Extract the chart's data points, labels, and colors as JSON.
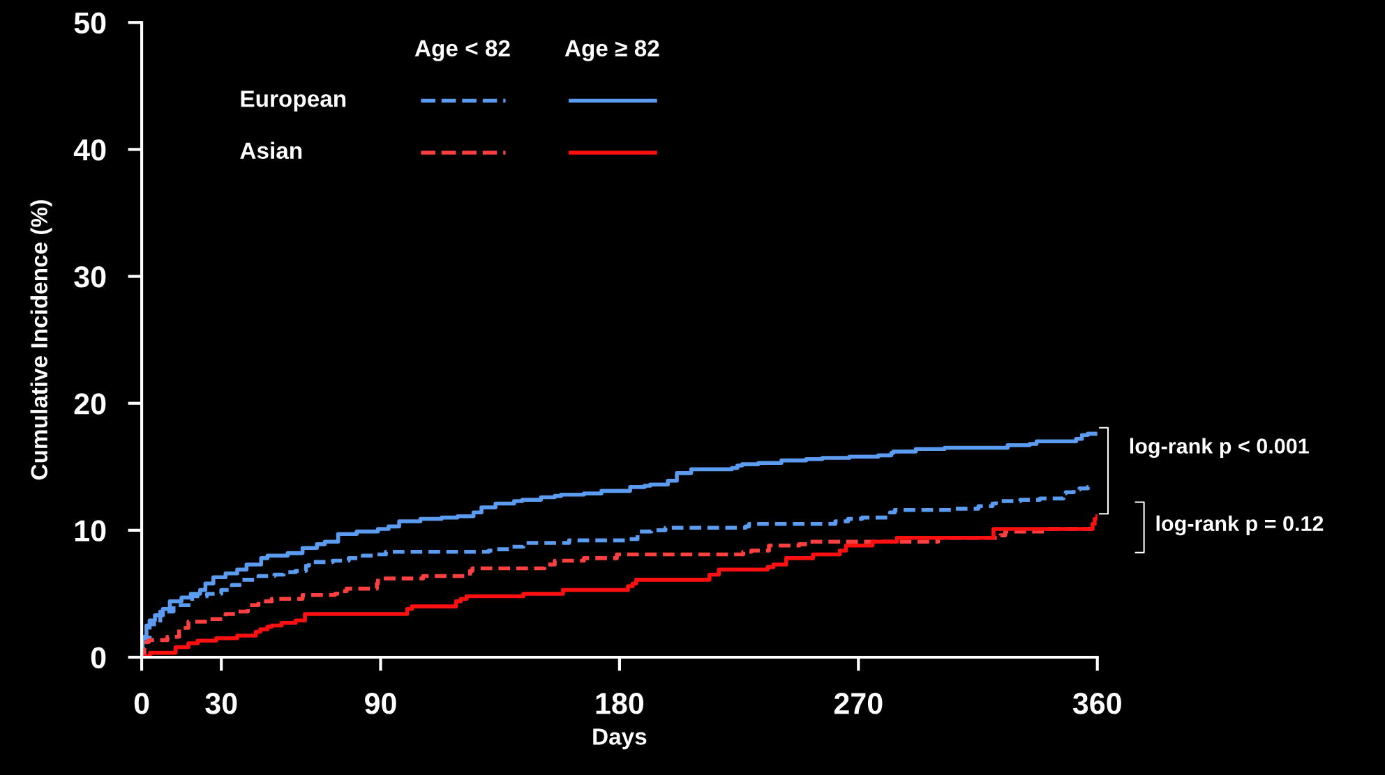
{
  "chart_data": {
    "type": "step",
    "xlabel": "Days",
    "ylabel": "Cumulative Incidence (%)",
    "xlim": [
      0,
      360
    ],
    "ylim": [
      0,
      50
    ],
    "xticks": [
      0,
      30,
      90,
      180,
      270,
      360
    ],
    "yticks": [
      0,
      10,
      20,
      30,
      40,
      50
    ],
    "grid": false,
    "annotations": [
      "Age < 82",
      "Age ≥ 82",
      "European",
      "Asian",
      "log-rank p < 0.001",
      "log-rank p = 0.12"
    ],
    "series": [
      {
        "color": "#5b9bf0",
        "line_style": "dashed",
        "x": [
          0,
          0.5,
          3,
          7,
          12,
          19,
          24.6,
          30,
          34,
          37.8,
          44,
          50,
          53.5,
          58,
          61.9,
          63,
          72,
          78,
          83.3,
          87.7,
          92,
          130.7,
          133.7,
          139.4,
          143.8,
          161,
          183.2,
          186.8,
          192,
          197.3,
          227.5,
          228.8,
          261.3,
          266.1,
          271.4,
          281.9,
          283.7,
          306,
          315.2,
          320.5,
          321.8,
          331,
          338.4,
          347.2,
          348.1,
          351.1,
          353.3,
          356.4,
          357.7,
          358
        ],
        "values": [
          0,
          1.5,
          2.6,
          3.6,
          4.1,
          4.8,
          5.0,
          5.3,
          5.7,
          6.1,
          6.4,
          6.5,
          6.7,
          6.8,
          7.2,
          7.5,
          7.6,
          7.8,
          8.0,
          8.1,
          8.3,
          8.4,
          8.5,
          8.7,
          9.0,
          9.2,
          9.3,
          9.9,
          10.0,
          10.2,
          10.3,
          10.5,
          10.7,
          10.9,
          11.0,
          11.4,
          11.6,
          11.7,
          11.9,
          12.1,
          12.3,
          12.4,
          12.5,
          12.9,
          13.0,
          13.2,
          13.3,
          13.4,
          13.6,
          13.6
        ]
      },
      {
        "color": "#5b9bf0",
        "line_style": "solid",
        "x": [
          0,
          0.3,
          1.8,
          3,
          5,
          8,
          10.6,
          15,
          18.5,
          22,
          24,
          27,
          31.6,
          36,
          39.5,
          45,
          47.4,
          55,
          60.6,
          66,
          69,
          74,
          81,
          89,
          93,
          97,
          105,
          113,
          119,
          125,
          128,
          133.3,
          140.3,
          143.4,
          150.4,
          155.6,
          158,
          166.6,
          173.2,
          184,
          189.4,
          191.6,
          198.2,
          201.6,
          207,
          222.3,
          224.4,
          226.2,
          232.3,
          241,
          250.3,
          256.4,
          266.6,
          277.5,
          282.4,
          283.2,
          291.6,
          302.5,
          326.2,
          334.5,
          337.1,
          352,
          354.2,
          356.4,
          360
        ],
        "values": [
          0,
          1.6,
          2.5,
          2.9,
          3.3,
          3.8,
          4.4,
          4.7,
          5.0,
          5.3,
          5.8,
          6.3,
          6.6,
          6.9,
          7.3,
          7.8,
          8.0,
          8.2,
          8.6,
          8.9,
          9.1,
          9.7,
          9.9,
          10.1,
          10.3,
          10.7,
          10.9,
          11.0,
          11.1,
          11.4,
          11.8,
          12.1,
          12.3,
          12.4,
          12.6,
          12.7,
          12.8,
          12.9,
          13.1,
          13.4,
          13.5,
          13.6,
          13.9,
          14.5,
          14.8,
          14.9,
          15.1,
          15.2,
          15.3,
          15.5,
          15.6,
          15.7,
          15.8,
          15.9,
          16.1,
          16.2,
          16.4,
          16.5,
          16.7,
          16.8,
          17.0,
          17.2,
          17.5,
          17.6,
          17.6
        ]
      },
      {
        "color": "#ff4040",
        "line_style": "dashed",
        "x": [
          0,
          1,
          1.8,
          2.7,
          9.7,
          14.1,
          17.6,
          24.9,
          31.6,
          36,
          40,
          44,
          49,
          60.6,
          72.8,
          73.7,
          77.2,
          88.6,
          89,
          106,
          123.7,
          124.6,
          151.7,
          155.6,
          166.6,
          179,
          226.6,
          229.7,
          236.3,
          247.7,
          250.7,
          300,
          323.5,
          325.3,
          342,
          358
        ],
        "values": [
          0,
          0.9,
          1.2,
          1.35,
          1.6,
          2.3,
          2.8,
          3.0,
          3.4,
          3.6,
          4.1,
          4.4,
          4.6,
          4.9,
          5.0,
          5.2,
          5.4,
          5.8,
          6.2,
          6.4,
          6.8,
          7.0,
          7.3,
          7.6,
          7.8,
          8.1,
          8.3,
          8.4,
          8.8,
          8.9,
          9.1,
          9.4,
          9.6,
          9.9,
          10.1,
          10.1
        ]
      },
      {
        "color": "#ff1010",
        "line_style": "solid",
        "x": [
          0,
          1.4,
          3.2,
          12.8,
          17.6,
          21.1,
          28.1,
          36,
          43,
          44.7,
          47.4,
          49,
          52.7,
          58,
          61.5,
          100,
          101.8,
          118.4,
          120.2,
          122.4,
          143.8,
          158.7,
          183.2,
          185,
          186.3,
          213.9,
          217.4,
          235.8,
          238,
          242.8,
          252.9,
          263,
          265.3,
          275.3,
          284.5,
          320.9,
          358.2,
          359,
          360
        ],
        "values": [
          0,
          0.1,
          0.35,
          0.8,
          1.1,
          1.3,
          1.5,
          1.7,
          2.0,
          2.2,
          2.4,
          2.5,
          2.7,
          2.9,
          3.4,
          3.8,
          4.0,
          4.4,
          4.6,
          4.8,
          5.0,
          5.3,
          5.6,
          5.8,
          6.1,
          6.5,
          6.9,
          7.1,
          7.3,
          7.8,
          8.1,
          8.4,
          8.8,
          9.1,
          9.4,
          10.1,
          10.5,
          10.9,
          11.1
        ]
      }
    ]
  }
}
